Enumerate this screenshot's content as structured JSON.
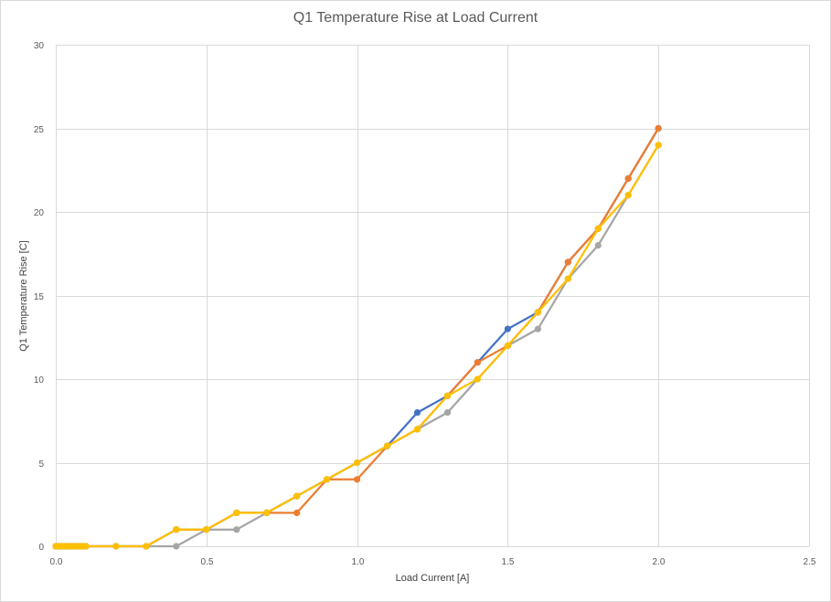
{
  "chart_data": {
    "type": "scatter",
    "title": "Q1 Temperature Rise at Load Current",
    "xlabel": "Load Current [A]",
    "ylabel": "Q1 Temperature Rise [C]",
    "xlim": [
      0,
      2.5
    ],
    "ylim": [
      0,
      30
    ],
    "x_ticks": [
      "0.0",
      "0.5",
      "1.0",
      "1.5",
      "2.0",
      "2.5"
    ],
    "y_ticks": [
      "0",
      "5",
      "10",
      "15",
      "20",
      "25",
      "30"
    ],
    "grid": true,
    "legend": "none",
    "series": [
      {
        "color": "#4472c4",
        "points": [
          [
            0,
            0
          ],
          [
            0.01,
            0
          ],
          [
            0.02,
            0
          ],
          [
            0.03,
            0
          ],
          [
            0.04,
            0
          ],
          [
            0.05,
            0
          ],
          [
            0.06,
            0
          ],
          [
            0.07,
            0
          ],
          [
            0.08,
            0
          ],
          [
            0.09,
            0
          ],
          [
            0.1,
            0
          ],
          [
            0.2,
            0
          ],
          [
            0.3,
            0
          ],
          [
            0.4,
            1
          ],
          [
            0.5,
            1
          ],
          [
            0.6,
            2
          ],
          [
            0.7,
            2
          ],
          [
            0.8,
            3
          ],
          [
            0.9,
            4
          ],
          [
            1.0,
            5
          ],
          [
            1.1,
            6
          ],
          [
            1.2,
            8
          ],
          [
            1.3,
            9
          ],
          [
            1.4,
            11
          ],
          [
            1.5,
            13
          ],
          [
            1.6,
            14
          ],
          [
            1.7,
            17
          ],
          [
            1.8,
            19
          ],
          [
            1.9,
            22
          ],
          [
            2.0,
            25
          ]
        ]
      },
      {
        "color": "#ed7d31",
        "points": [
          [
            0,
            0
          ],
          [
            0.01,
            0
          ],
          [
            0.02,
            0
          ],
          [
            0.03,
            0
          ],
          [
            0.04,
            0
          ],
          [
            0.05,
            0
          ],
          [
            0.06,
            0
          ],
          [
            0.07,
            0
          ],
          [
            0.08,
            0
          ],
          [
            0.09,
            0
          ],
          [
            0.1,
            0
          ],
          [
            0.2,
            0
          ],
          [
            0.3,
            0
          ],
          [
            0.4,
            1
          ],
          [
            0.5,
            1
          ],
          [
            0.6,
            2
          ],
          [
            0.7,
            2
          ],
          [
            0.8,
            2
          ],
          [
            0.9,
            4
          ],
          [
            1.0,
            4
          ],
          [
            1.1,
            6
          ],
          [
            1.2,
            7
          ],
          [
            1.3,
            9
          ],
          [
            1.4,
            11
          ],
          [
            1.5,
            12
          ],
          [
            1.6,
            14
          ],
          [
            1.7,
            17
          ],
          [
            1.8,
            19
          ],
          [
            1.9,
            22
          ],
          [
            2.0,
            25
          ]
        ]
      },
      {
        "color": "#a5a5a5",
        "points": [
          [
            0,
            0
          ],
          [
            0.01,
            0
          ],
          [
            0.02,
            0
          ],
          [
            0.03,
            0
          ],
          [
            0.04,
            0
          ],
          [
            0.05,
            0
          ],
          [
            0.06,
            0
          ],
          [
            0.07,
            0
          ],
          [
            0.08,
            0
          ],
          [
            0.09,
            0
          ],
          [
            0.1,
            0
          ],
          [
            0.2,
            0
          ],
          [
            0.3,
            0
          ],
          [
            0.4,
            0
          ],
          [
            0.5,
            1
          ],
          [
            0.6,
            1
          ],
          [
            0.7,
            2
          ],
          [
            0.8,
            3
          ],
          [
            0.9,
            4
          ],
          [
            1.0,
            5
          ],
          [
            1.1,
            6
          ],
          [
            1.2,
            7
          ],
          [
            1.3,
            8
          ],
          [
            1.4,
            10
          ],
          [
            1.5,
            12
          ],
          [
            1.6,
            13
          ],
          [
            1.7,
            16
          ],
          [
            1.8,
            18
          ],
          [
            1.9,
            21
          ],
          [
            2.0,
            24
          ]
        ]
      },
      {
        "color": "#ffc000",
        "points": [
          [
            0,
            0
          ],
          [
            0.01,
            0
          ],
          [
            0.02,
            0
          ],
          [
            0.03,
            0
          ],
          [
            0.04,
            0
          ],
          [
            0.05,
            0
          ],
          [
            0.06,
            0
          ],
          [
            0.07,
            0
          ],
          [
            0.08,
            0
          ],
          [
            0.09,
            0
          ],
          [
            0.1,
            0
          ],
          [
            0.2,
            0
          ],
          [
            0.3,
            0
          ],
          [
            0.4,
            1
          ],
          [
            0.5,
            1
          ],
          [
            0.6,
            2
          ],
          [
            0.7,
            2
          ],
          [
            0.8,
            3
          ],
          [
            0.9,
            4
          ],
          [
            1.0,
            5
          ],
          [
            1.1,
            6
          ],
          [
            1.2,
            7
          ],
          [
            1.3,
            9
          ],
          [
            1.4,
            10
          ],
          [
            1.5,
            12
          ],
          [
            1.6,
            14
          ],
          [
            1.7,
            16
          ],
          [
            1.8,
            19
          ],
          [
            1.9,
            21
          ],
          [
            2.0,
            24
          ]
        ]
      }
    ]
  }
}
